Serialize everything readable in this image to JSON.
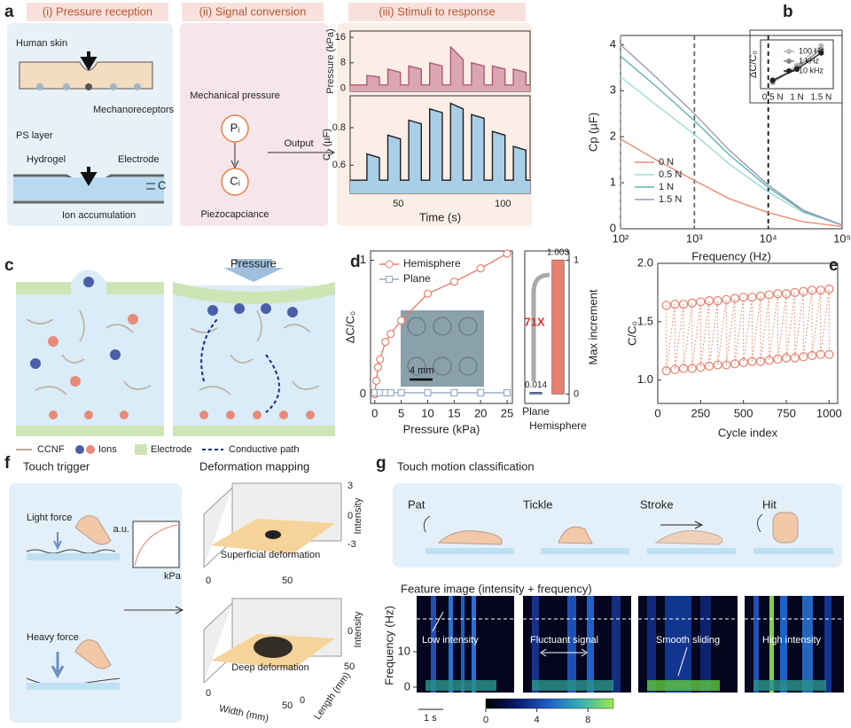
{
  "a": {
    "label": "a",
    "headers": [
      "(i) Pressure reception",
      "(ii) Signal conversion",
      "(iii) Stimuli to response"
    ],
    "skin": "Human skin",
    "mechanoreceptors": "Mechanoreceptors",
    "ps_layer": "PS layer",
    "hydrogel": "Hydrogel",
    "electrode": "Electrode",
    "cap": "C",
    "ion": "Ion accumulation",
    "mech": "Mechanical pressure",
    "pi": "Pᵢ",
    "ci": "Cᵢ",
    "piezo": "Piezocapciance",
    "output": "Output",
    "chart_data": [
      {
        "type": "line",
        "ylabel": "Pressure (kPa)",
        "x": [
          27,
          35,
          35,
          41,
          41,
          45,
          45,
          51,
          51,
          55,
          55,
          61,
          61,
          65,
          65,
          71,
          71,
          75,
          75,
          81,
          81,
          85,
          85,
          91,
          91,
          95,
          95,
          101,
          101,
          105,
          105,
          111,
          111,
          113
        ],
        "xlim": [
          27,
          113
        ],
        "ylim": [
          -1,
          18
        ],
        "yticks": [
          0,
          8,
          16
        ],
        "series": [
          {
            "color": "#b05a72",
            "fill": "#dba6b3",
            "values": [
              1,
              1,
              4,
              3.5,
              1,
              1,
              6,
              5,
              1,
              1,
              7,
              6,
              1,
              1,
              8,
              7,
              1,
              1,
              13,
              9,
              1,
              1,
              8,
              7,
              1,
              1,
              7,
              6,
              1,
              1,
              6,
              5,
              1,
              1
            ]
          }
        ]
      },
      {
        "type": "line",
        "xlabel": "Time (s)",
        "ylabel": "C₀ (µF)",
        "x": [
          27,
          35,
          35,
          41,
          41,
          45,
          45,
          51,
          51,
          55,
          55,
          61,
          61,
          65,
          65,
          71,
          71,
          75,
          75,
          81,
          81,
          85,
          85,
          91,
          91,
          95,
          95,
          101,
          101,
          105,
          105,
          111,
          111,
          113
        ],
        "xlim": [
          27,
          113
        ],
        "xticks": [
          50,
          100
        ],
        "ylim": [
          0.45,
          0.97
        ],
        "yticks": [
          0.6,
          0.8
        ],
        "series": [
          {
            "color": "#1e1e1e",
            "fill": "#a9cfe8",
            "values": [
              0.52,
              0.52,
              0.66,
              0.64,
              0.52,
              0.52,
              0.76,
              0.74,
              0.52,
              0.52,
              0.84,
              0.82,
              0.52,
              0.52,
              0.9,
              0.88,
              0.52,
              0.52,
              0.93,
              0.9,
              0.52,
              0.52,
              0.87,
              0.85,
              0.52,
              0.52,
              0.78,
              0.76,
              0.52,
              0.52,
              0.7,
              0.68,
              0.52,
              0.52
            ]
          }
        ]
      }
    ]
  },
  "b": {
    "label": "b",
    "chart_data": [
      {
        "type": "line",
        "xlabel": "Frequency (Hz)",
        "ylabel": "Cp (µF)",
        "xlog": true,
        "x": [
          100,
          300,
          1000,
          3000,
          10000,
          30000,
          100000
        ],
        "xlim": [
          100,
          100000
        ],
        "xticks": [
          {
            "value": 100,
            "label": "10²"
          },
          {
            "value": 1000,
            "label": "10³"
          },
          {
            "value": 10000,
            "label": "10⁴"
          },
          {
            "value": 100000,
            "label": "10⁵"
          }
        ],
        "ylim": [
          0,
          4.2
        ],
        "yticks": [
          0,
          1,
          2,
          3,
          4
        ],
        "vlines": [
          {
            "x": 100,
            "color": "#aaaaaa"
          },
          {
            "x": 1000,
            "color": "#666666"
          },
          {
            "x": 10000,
            "color": "#111111"
          }
        ],
        "series": [
          {
            "name": "0 N",
            "color": "#f08a76",
            "values": [
              1.95,
              1.5,
              1.05,
              0.65,
              0.35,
              0.15,
              0.05
            ]
          },
          {
            "name": "0.5 N",
            "color": "#9fdcd6",
            "values": [
              3.3,
              2.7,
              2.05,
              1.4,
              0.8,
              0.35,
              0.08
            ]
          },
          {
            "name": "1 N",
            "color": "#5bb3b0",
            "values": [
              3.75,
              3.1,
              2.35,
              1.6,
              0.9,
              0.38,
              0.08
            ]
          },
          {
            "name": "1.5 N",
            "color": "#9a9ab8",
            "values": [
              4.0,
              3.3,
              2.5,
              1.7,
              0.95,
              0.4,
              0.08
            ]
          }
        ]
      },
      {
        "type": "line",
        "ylabel": "ΔC/C₀",
        "categories": [
          "0.5 N",
          "1 N",
          "1.5 N"
        ],
        "ylim": [
          0.2,
          0.95
        ],
        "series": [
          {
            "name": "100 Hz",
            "color": "#bbbbbb",
            "marker": "circle",
            "values": [
              0.32,
              0.56,
              0.86
            ]
          },
          {
            "name": "1 kHz",
            "color": "#888888",
            "marker": "circle",
            "values": [
              0.3,
              0.53,
              0.8
            ]
          },
          {
            "name": "10 kHz",
            "color": "#222222",
            "marker": "circle",
            "values": [
              0.33,
              0.5,
              0.75
            ]
          }
        ]
      }
    ]
  },
  "c": {
    "label": "c",
    "pressure": "Pressure",
    "legend": [
      "CCNF",
      "Ions",
      "Electrode",
      "Conductive path"
    ]
  },
  "d": {
    "label": "d",
    "scalebar": "4 mm",
    "annotation": "71X",
    "chart_data": [
      {
        "type": "line",
        "xlabel": "Pressure (kPa)",
        "ylabel": "ΔC/C₀",
        "xlim": [
          -0.8,
          26
        ],
        "xticks": [
          0,
          5,
          10,
          15,
          20,
          25
        ],
        "ylim": [
          -0.07,
          1.07
        ],
        "yticks": [
          0,
          1
        ],
        "series": [
          {
            "name": "Hemisphere",
            "color": "#e8806e",
            "marker": "circle",
            "x": [
              0,
              0.3,
              0.6,
              1,
              2,
              3,
              5,
              10,
              15,
              20,
              25
            ],
            "values": [
              0,
              0.1,
              0.2,
              0.26,
              0.39,
              0.45,
              0.55,
              0.75,
              0.84,
              0.94,
              1.05
            ]
          },
          {
            "name": "Plane",
            "color": "#9aa8c8",
            "marker": "square",
            "x": [
              0,
              1,
              2,
              3,
              5,
              10,
              15,
              20,
              25
            ],
            "values": [
              0.01,
              0.01,
              0.01,
              0.01,
              0.01,
              0.01,
              0.01,
              0.01,
              0.01
            ]
          }
        ]
      },
      {
        "type": "bar",
        "ylabel": "Max increment",
        "categories": [
          "Plane",
          "Hemisphere"
        ],
        "values": [
          0.014,
          1.003
        ],
        "colors": [
          "#5b6fa8",
          "#e8806e"
        ],
        "ylim": [
          -0.07,
          1.07
        ],
        "yticks": [
          0,
          1
        ]
      }
    ]
  },
  "e": {
    "label": "e",
    "chart_data": {
      "type": "scatter",
      "xlabel": "Cycle index",
      "ylabel": "C/C₀",
      "x": [
        50,
        100,
        150,
        200,
        250,
        300,
        350,
        400,
        450,
        500,
        550,
        600,
        650,
        700,
        750,
        800,
        850,
        900,
        950,
        1000
      ],
      "xlim": [
        0,
        1050
      ],
      "xticks": [
        0,
        250,
        500,
        750,
        1000
      ],
      "ylim": [
        0.8,
        2.0
      ],
      "yticks": [
        {
          "value": 1,
          "label": "1.0"
        },
        1.5,
        {
          "value": 2,
          "label": "2.0"
        }
      ],
      "series": [
        {
          "color": "#e8806e",
          "values": [
            1.64,
            1.65,
            1.65,
            1.66,
            1.67,
            1.68,
            1.68,
            1.69,
            1.7,
            1.71,
            1.71,
            1.72,
            1.73,
            1.74,
            1.74,
            1.75,
            1.76,
            1.77,
            1.77,
            1.78
          ]
        },
        {
          "color": "#e8806e",
          "values": [
            1.08,
            1.09,
            1.1,
            1.1,
            1.11,
            1.12,
            1.13,
            1.13,
            1.14,
            1.15,
            1.16,
            1.16,
            1.17,
            1.18,
            1.19,
            1.19,
            1.2,
            1.21,
            1.22,
            1.22
          ]
        }
      ]
    }
  },
  "f": {
    "label": "f",
    "title": "Touch trigger",
    "light": "Light force",
    "heavy": "Heavy force",
    "au": "a.u.",
    "kpa": "kPa",
    "mapping": "Deformation mapping",
    "superficial": "Superficial deformation",
    "deep": "Deep deformation",
    "intensity": "Intensity",
    "width": "Width (mm)",
    "length": "Length (mm)",
    "top_intensity_ticks": [
      "3",
      "0",
      "-3"
    ],
    "top_width_ticks": [
      "0",
      "50"
    ],
    "bottom_intensity_ticks": [
      "0"
    ],
    "bottom_width_ticks": [
      "0",
      "50"
    ],
    "bottom_length_ticks": [
      "0",
      "50"
    ]
  },
  "g": {
    "label": "g",
    "title": "Touch motion classification",
    "motions": [
      "Pat",
      "Tickle",
      "Stroke",
      "Hit"
    ],
    "feature": "Feature image (intensity + frequency)",
    "annotations": [
      "Low intensity",
      "Fluctuant signal",
      "Smooth sliding",
      "High intensity"
    ],
    "ylabel": "Frequency (Hz)",
    "ylim": [
      -1.5,
      25.7
    ],
    "yticks": [
      0,
      10
    ],
    "scale": "1 s",
    "clim": [
      0,
      10
    ],
    "colorbar_ticks": [
      0,
      4,
      8
    ]
  }
}
